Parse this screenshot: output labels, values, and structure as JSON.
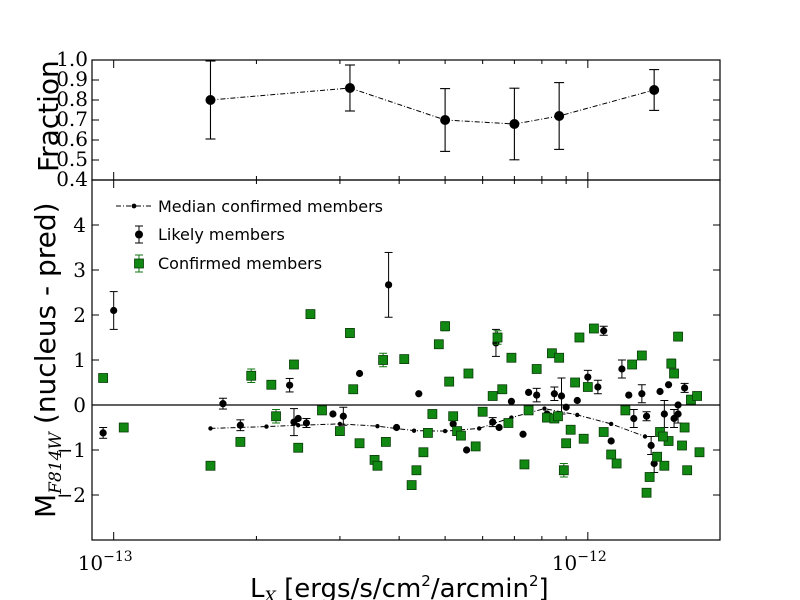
{
  "chart_data": [
    {
      "type": "line",
      "panel": "top",
      "ylabel": "Fraction",
      "xscale": "log",
      "xlim": [
        9e-14,
        1.9e-12
      ],
      "ylim": [
        0.4,
        1.0
      ],
      "yticks": [
        "1.0",
        "0.9",
        "0.8",
        "0.7",
        "0.6",
        "0.5",
        "0.4"
      ],
      "ytick_values": [
        1.0,
        0.9,
        0.8,
        0.7,
        0.6,
        0.5,
        0.4
      ],
      "series": [
        {
          "name": "Fraction",
          "x": [
            1.6e-13,
            3.15e-13,
            5e-13,
            7e-13,
            8.7e-13,
            1.38e-12
          ],
          "y": [
            0.8,
            0.86,
            0.7,
            0.68,
            0.72,
            0.85
          ],
          "err": [
            0.195,
            0.115,
            0.157,
            0.179,
            0.167,
            0.102
          ]
        }
      ]
    },
    {
      "type": "scatter",
      "panel": "bottom",
      "ylabel": "(nucleus - pred)",
      "ylabel_main": "M",
      "ylabel_sub": "F814W",
      "xscale": "log",
      "xlim": [
        9e-14,
        1.9e-12
      ],
      "ylim": [
        -3.0,
        5.0
      ],
      "yticks": [
        "4",
        "3",
        "2",
        "1",
        "0",
        "−1",
        "−2"
      ],
      "ytick_values": [
        4,
        3,
        2,
        1,
        0,
        -1,
        -2
      ],
      "x_label_main": "L",
      "x_label_sub": "X",
      "x_label_rest": " [ergs/s/cm",
      "x_label_sup": "2",
      "x_label_rest2": "/arcmin",
      "x_label_sup2": "2",
      "x_label_end": "]",
      "x_tick_labels": [
        {
          "base": "10",
          "exp": "−13",
          "value": 1e-13
        },
        {
          "base": "10",
          "exp": "−12",
          "value": 1e-12
        }
      ],
      "legend": {
        "position": "top-left",
        "entries": [
          "Median confirmed members",
          "Likely members",
          "Confirmed members"
        ]
      },
      "median": {
        "name": "Median confirmed members",
        "x": [
          1.6e-13,
          2.1e-13,
          2.45e-13,
          3e-13,
          3.6e-13,
          4.3e-13,
          5e-13,
          5.9e-13,
          6.9e-13,
          8.1e-13,
          9.5e-13,
          1.12e-12,
          1.32e-12
        ],
        "y": [
          -0.52,
          -0.48,
          -0.45,
          -0.42,
          -0.47,
          -0.57,
          -0.58,
          -0.52,
          -0.28,
          -0.08,
          -0.22,
          -0.42,
          -0.7
        ]
      },
      "likely": {
        "name": "Likely members",
        "points": [
          [
            9.5e-14,
            -0.62,
            0.12
          ],
          [
            1e-13,
            2.1,
            0.42
          ],
          [
            1.7e-13,
            0.03,
            0.12
          ],
          [
            1.85e-13,
            -0.45,
            0.12
          ],
          [
            2.35e-13,
            0.44,
            0.15
          ],
          [
            2.4e-13,
            -0.38,
            0.3
          ],
          [
            2.45e-13,
            -0.3,
            0.0
          ],
          [
            2.55e-13,
            -0.4,
            0.1
          ],
          [
            2.9e-13,
            -0.2,
            0.0
          ],
          [
            3.05e-13,
            -0.25,
            0.2
          ],
          [
            3.3e-13,
            0.7,
            0.0
          ],
          [
            3.8e-13,
            2.67,
            0.72
          ],
          [
            3.95e-13,
            -0.5,
            0.0
          ],
          [
            4.4e-13,
            0.25,
            0.0
          ],
          [
            5.2e-13,
            -0.42,
            0.0
          ],
          [
            5.55e-13,
            -1.0,
            0.0
          ],
          [
            6.3e-13,
            -0.38,
            0.1
          ],
          [
            6.4e-13,
            1.38,
            0.3
          ],
          [
            6.5e-13,
            -0.5,
            0.0
          ],
          [
            6.9e-13,
            0.08,
            0.0
          ],
          [
            7.3e-13,
            -0.65,
            0.0
          ],
          [
            7.5e-13,
            0.28,
            0.0
          ],
          [
            7.8e-13,
            0.22,
            0.15
          ],
          [
            8.2e-13,
            -0.2,
            0.0
          ],
          [
            8.5e-13,
            0.25,
            0.15
          ],
          [
            8.8e-13,
            0.2,
            0.4
          ],
          [
            9e-13,
            -0.05,
            0.0
          ],
          [
            9.5e-13,
            0.1,
            0.0
          ],
          [
            1e-12,
            0.62,
            0.15
          ],
          [
            1.05e-12,
            0.4,
            0.15
          ],
          [
            1.08e-12,
            1.65,
            0.1
          ],
          [
            1.12e-12,
            -0.8,
            0.0
          ],
          [
            1.18e-12,
            0.8,
            0.2
          ],
          [
            1.22e-12,
            0.22,
            0.0
          ],
          [
            1.25e-12,
            -0.3,
            0.2
          ],
          [
            1.3e-12,
            0.25,
            0.2
          ],
          [
            1.33e-12,
            -0.25,
            0.1
          ],
          [
            1.36e-12,
            -0.9,
            0.2
          ],
          [
            1.38e-12,
            -1.3,
            0.2
          ],
          [
            1.42e-12,
            0.3,
            0.0
          ],
          [
            1.45e-12,
            -0.2,
            0.3
          ],
          [
            1.48e-12,
            0.45,
            0.0
          ],
          [
            1.52e-12,
            -0.3,
            0.2
          ],
          [
            1.55e-12,
            -0.2,
            0.2
          ],
          [
            1.6e-12,
            0.38,
            0.1
          ],
          [
            1.55e-12,
            0.0,
            0.0
          ]
        ]
      },
      "confirmed": {
        "name": "Confirmed members",
        "points": [
          [
            9.5e-14,
            0.6,
            0
          ],
          [
            1.05e-13,
            -0.5,
            0
          ],
          [
            1.6e-13,
            -1.35,
            0
          ],
          [
            1.85e-13,
            -0.82,
            0
          ],
          [
            1.95e-13,
            0.65,
            0.15
          ],
          [
            2.15e-13,
            0.45,
            0
          ],
          [
            2.2e-13,
            -0.25,
            0.15
          ],
          [
            2.4e-13,
            0.9,
            0
          ],
          [
            2.45e-13,
            -0.95,
            0
          ],
          [
            2.6e-13,
            2.02,
            0
          ],
          [
            2.75e-13,
            -0.12,
            0
          ],
          [
            3e-13,
            -0.58,
            0
          ],
          [
            3.15e-13,
            1.6,
            0.1
          ],
          [
            3.2e-13,
            0.35,
            0
          ],
          [
            3.3e-13,
            -0.85,
            0
          ],
          [
            3.55e-13,
            -1.22,
            0
          ],
          [
            3.6e-13,
            -1.35,
            0
          ],
          [
            3.7e-13,
            1.0,
            0.15
          ],
          [
            3.75e-13,
            -0.82,
            0
          ],
          [
            4.1e-13,
            1.02,
            0
          ],
          [
            4.25e-13,
            -1.78,
            0
          ],
          [
            4.35e-13,
            -1.45,
            0
          ],
          [
            4.5e-13,
            -1.05,
            0
          ],
          [
            4.6e-13,
            -0.62,
            0
          ],
          [
            4.7e-13,
            -0.2,
            0
          ],
          [
            4.85e-13,
            1.35,
            0
          ],
          [
            5e-13,
            1.75,
            0.1
          ],
          [
            5.1e-13,
            0.52,
            0
          ],
          [
            5.2e-13,
            -0.25,
            0
          ],
          [
            5.3e-13,
            -0.58,
            0
          ],
          [
            5.4e-13,
            -0.68,
            0
          ],
          [
            5.6e-13,
            0.7,
            0
          ],
          [
            5.8e-13,
            -0.92,
            0
          ],
          [
            6e-13,
            -0.15,
            0
          ],
          [
            6.3e-13,
            0.2,
            0
          ],
          [
            6.45e-13,
            1.5,
            0.15
          ],
          [
            6.6e-13,
            0.35,
            0
          ],
          [
            6.8e-13,
            -0.4,
            0
          ],
          [
            6.9e-13,
            1.05,
            0
          ],
          [
            7.35e-13,
            -1.32,
            0
          ],
          [
            7.5e-13,
            -0.12,
            0
          ],
          [
            7.8e-13,
            0.8,
            0
          ],
          [
            8.2e-13,
            -0.28,
            0
          ],
          [
            8.4e-13,
            1.15,
            0
          ],
          [
            8.5e-13,
            -0.3,
            0
          ],
          [
            8.65e-13,
            -0.25,
            0
          ],
          [
            8.7e-13,
            1.05,
            0
          ],
          [
            8.9e-13,
            -1.45,
            0.15
          ],
          [
            9e-13,
            -0.85,
            0
          ],
          [
            9.2e-13,
            -0.55,
            0
          ],
          [
            9.4e-13,
            0.5,
            0
          ],
          [
            9.6e-13,
            1.5,
            0
          ],
          [
            9.8e-13,
            -0.75,
            0
          ],
          [
            1e-12,
            0.4,
            0
          ],
          [
            1.03e-12,
            1.7,
            0
          ],
          [
            1.08e-12,
            -0.6,
            0
          ],
          [
            1.12e-12,
            -1.1,
            0
          ],
          [
            1.15e-12,
            -1.3,
            0
          ],
          [
            1.2e-12,
            -0.12,
            0
          ],
          [
            1.24e-12,
            0.9,
            0
          ],
          [
            1.3e-12,
            1.1,
            0
          ],
          [
            1.33e-12,
            -1.95,
            0
          ],
          [
            1.35e-12,
            -1.6,
            0
          ],
          [
            1.4e-12,
            -1.15,
            0
          ],
          [
            1.42e-12,
            -0.6,
            0
          ],
          [
            1.45e-12,
            -1.35,
            0
          ],
          [
            1.48e-12,
            -0.8,
            0
          ],
          [
            1.5e-12,
            0.92,
            0.1
          ],
          [
            1.52e-12,
            0.7,
            0
          ],
          [
            1.55e-12,
            1.52,
            0
          ],
          [
            1.58e-12,
            -0.9,
            0
          ],
          [
            1.6e-12,
            -0.5,
            0
          ],
          [
            1.62e-12,
            -1.45,
            0
          ],
          [
            1.65e-12,
            0.12,
            0
          ],
          [
            1.7e-12,
            0.2,
            0
          ],
          [
            1.72e-12,
            -1.05,
            0
          ],
          [
            1.44e-12,
            -0.7,
            0
          ]
        ]
      }
    }
  ]
}
